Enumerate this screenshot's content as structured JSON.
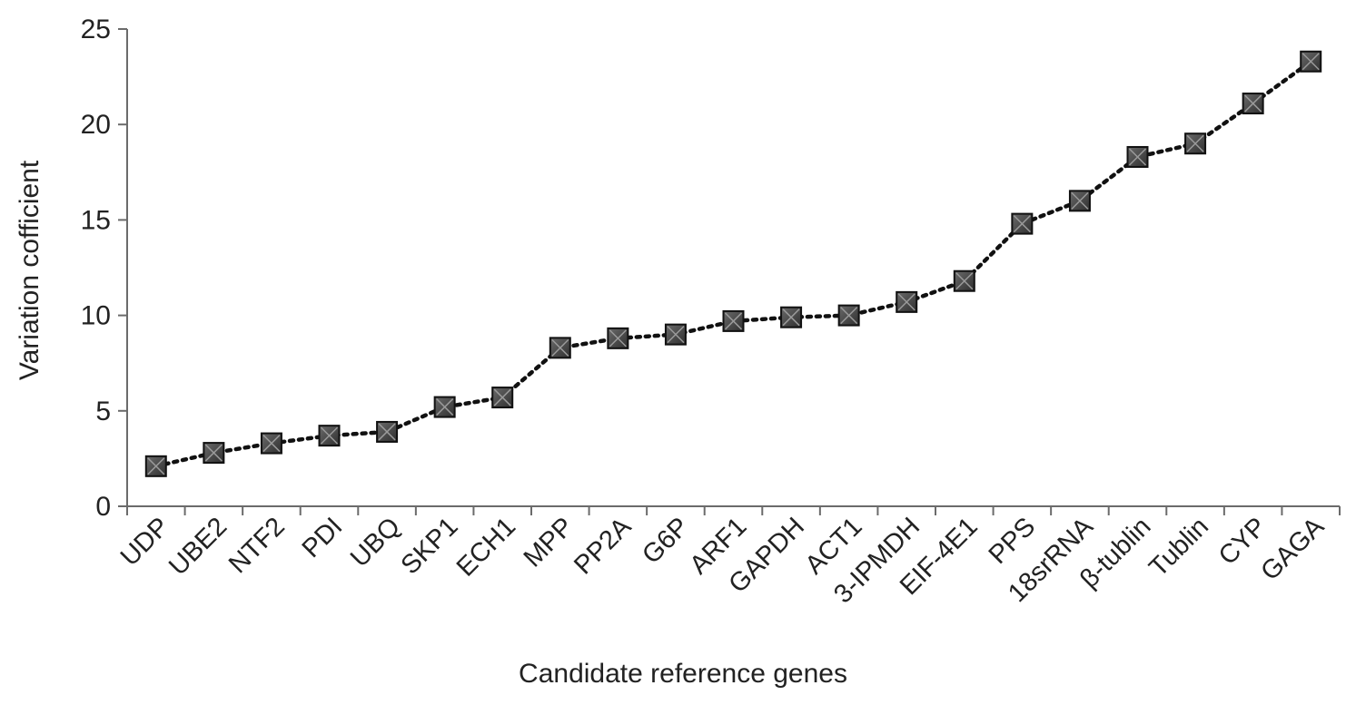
{
  "chart_data": {
    "type": "line",
    "title": "",
    "xlabel": "Candidate reference genes",
    "ylabel": "Variation cofficient",
    "ylim": [
      0,
      25
    ],
    "yticks": [
      0,
      5,
      10,
      15,
      20,
      25
    ],
    "grid": false,
    "legend": "none",
    "marker": "square",
    "line_style": "dotted",
    "colors": {
      "marker": "#2f2f2f",
      "line": "#111111",
      "axis": "#6b6b6b"
    },
    "categories": [
      "UDP",
      "UBE2",
      "NTF2",
      "PDI",
      "UBQ",
      "SKP1",
      "ECH1",
      "MPP",
      "PP2A",
      "G6P",
      "ARF1",
      "GAPDH",
      "ACT1",
      "3-IPMDH",
      "EIF-4E1",
      "PPS",
      "18srRNA",
      "β-tublin",
      "Tublin",
      "CYP",
      "GAGA"
    ],
    "series": [
      {
        "values": [
          2.1,
          2.8,
          3.3,
          3.7,
          3.9,
          5.2,
          5.7,
          8.3,
          8.8,
          9.0,
          9.7,
          9.9,
          10.0,
          10.7,
          11.8,
          14.8,
          16.0,
          18.3,
          19.0,
          21.1,
          23.3
        ]
      }
    ]
  }
}
